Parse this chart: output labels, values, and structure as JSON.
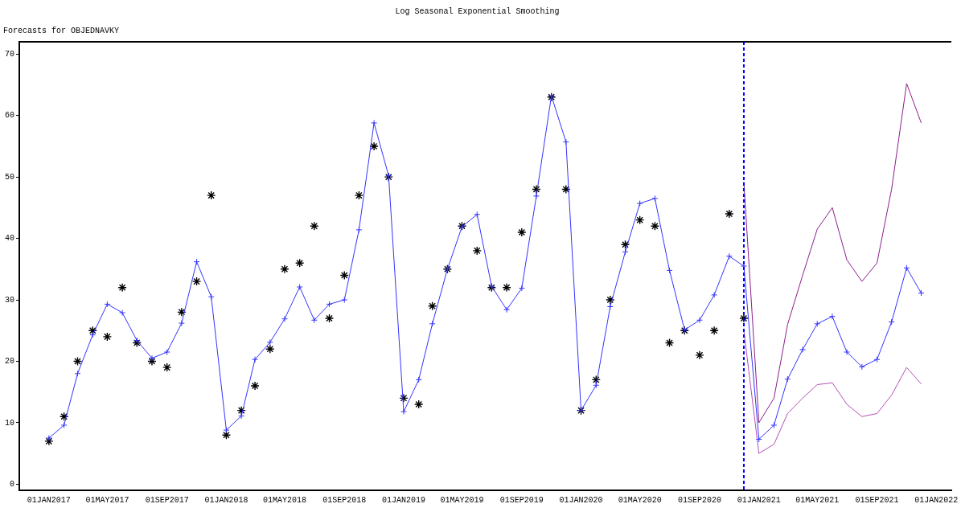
{
  "chart_data": {
    "type": "line",
    "title": "Log Seasonal Exponential Smoothing",
    "subtitle": "Forecasts for OBJEDNAVKY",
    "xlim": [
      "2016-11",
      "2022-02"
    ],
    "xticks": [
      {
        "value": "2017-01",
        "label": "01JAN2017"
      },
      {
        "value": "2017-05",
        "label": "01MAY2017"
      },
      {
        "value": "2017-09",
        "label": "01SEP2017"
      },
      {
        "value": "2018-01",
        "label": "01JAN2018"
      },
      {
        "value": "2018-05",
        "label": "01MAY2018"
      },
      {
        "value": "2018-09",
        "label": "01SEP2018"
      },
      {
        "value": "2019-01",
        "label": "01JAN2019"
      },
      {
        "value": "2019-05",
        "label": "01MAY2019"
      },
      {
        "value": "2019-09",
        "label": "01SEP2019"
      },
      {
        "value": "2020-01",
        "label": "01JAN2020"
      },
      {
        "value": "2020-05",
        "label": "01MAY2020"
      },
      {
        "value": "2020-09",
        "label": "01SEP2020"
      },
      {
        "value": "2021-01",
        "label": "01JAN2021"
      },
      {
        "value": "2021-05",
        "label": "01MAY2021"
      },
      {
        "value": "2021-09",
        "label": "01SEP2021"
      },
      {
        "value": "2022-01",
        "label": "01JAN2022"
      }
    ],
    "ylim": [
      -1,
      72
    ],
    "yticks": [
      0,
      10,
      20,
      30,
      40,
      50,
      60,
      70
    ],
    "grid": false,
    "legend": false,
    "ref_lines": [
      {
        "axis": "x",
        "value": "2020-12",
        "color": "#0000ff",
        "line_style": "dashed"
      }
    ],
    "series": [
      {
        "type": "line",
        "color": "#3333ff",
        "marker": "cross",
        "x": [
          "2017-01",
          "2017-02",
          "2017-03",
          "2017-04",
          "2017-05",
          "2017-06",
          "2017-07",
          "2017-08",
          "2017-09",
          "2017-10",
          "2017-11",
          "2017-12",
          "2018-01",
          "2018-02",
          "2018-03",
          "2018-04",
          "2018-05",
          "2018-06",
          "2018-07",
          "2018-08",
          "2018-09",
          "2018-10",
          "2018-11",
          "2018-12",
          "2019-01",
          "2019-02",
          "2019-03",
          "2019-04",
          "2019-05",
          "2019-06",
          "2019-07",
          "2019-08",
          "2019-09",
          "2019-10",
          "2019-11",
          "2019-12",
          "2020-01",
          "2020-02",
          "2020-03",
          "2020-04",
          "2020-05",
          "2020-06",
          "2020-07",
          "2020-08",
          "2020-09",
          "2020-10",
          "2020-11",
          "2020-12",
          "2021-01",
          "2021-02",
          "2021-03",
          "2021-04",
          "2021-05",
          "2021-06",
          "2021-07",
          "2021-08",
          "2021-09",
          "2021-10",
          "2021-11",
          "2021-12"
        ],
        "values": [
          7.5,
          9.6,
          18,
          24.3,
          29.3,
          27.9,
          23.4,
          20.5,
          21.5,
          26.2,
          36.2,
          30.5,
          8.8,
          11.1,
          20.3,
          23.1,
          26.9,
          32.1,
          26.7,
          29.3,
          30,
          41.4,
          58.8,
          50.2,
          11.8,
          17,
          26.1,
          35,
          41.9,
          43.9,
          32.2,
          28.4,
          31.9,
          46.9,
          63.2,
          55.7,
          12,
          16.1,
          28.9,
          37.8,
          45.7,
          46.5,
          34.8,
          25.1,
          26.7,
          30.8,
          37.1,
          35.5,
          7.3,
          9.6,
          17.1,
          21.9,
          26.1,
          27.3,
          21.5,
          19.1,
          20.3,
          26.4,
          35.2,
          31.1
        ]
      },
      {
        "type": "scatter",
        "color": "#000000",
        "x": [
          "2017-01",
          "2017-02",
          "2017-03",
          "2017-04",
          "2017-05",
          "2017-06",
          "2017-07",
          "2017-08",
          "2017-09",
          "2017-10",
          "2017-11",
          "2017-12",
          "2018-01",
          "2018-02",
          "2018-03",
          "2018-04",
          "2018-05",
          "2018-06",
          "2018-07",
          "2018-08",
          "2018-09",
          "2018-10",
          "2018-11",
          "2018-12",
          "2019-01",
          "2019-02",
          "2019-03",
          "2019-04",
          "2019-05",
          "2019-06",
          "2019-07",
          "2019-08",
          "2019-09",
          "2019-10",
          "2019-11",
          "2019-12",
          "2020-01",
          "2020-02",
          "2020-03",
          "2020-04",
          "2020-05",
          "2020-06",
          "2020-07",
          "2020-08",
          "2020-09",
          "2020-10",
          "2020-11",
          "2020-12"
        ],
        "values": [
          7,
          11,
          20,
          25,
          24,
          32,
          23,
          20,
          19,
          28,
          33,
          47,
          8,
          12,
          16,
          22,
          35,
          36,
          42,
          27,
          34,
          47,
          55,
          50,
          14,
          13,
          29,
          35,
          42,
          38,
          32,
          32,
          41,
          48,
          63,
          48,
          12,
          17,
          30,
          39,
          43,
          42,
          23,
          25,
          21,
          25,
          44,
          27
        ]
      },
      {
        "type": "line",
        "color": "#8b1f8b",
        "marker": "none",
        "x": [
          "2020-12",
          "2021-01",
          "2021-02",
          "2021-03",
          "2021-04",
          "2021-05",
          "2021-06",
          "2021-07",
          "2021-08",
          "2021-09",
          "2021-10",
          "2021-11",
          "2021-12"
        ],
        "values": [
          49.2,
          10,
          14,
          26,
          34,
          41.5,
          45,
          36.5,
          33,
          36,
          48,
          65.2,
          58.8
        ]
      },
      {
        "type": "line",
        "color": "#b34fb3",
        "marker": "none",
        "x": [
          "2020-12",
          "2021-01",
          "2021-02",
          "2021-03",
          "2021-04",
          "2021-05",
          "2021-06",
          "2021-07",
          "2021-08",
          "2021-09",
          "2021-10",
          "2021-11",
          "2021-12"
        ],
        "values": [
          25,
          5,
          6.5,
          11.5,
          14,
          16.2,
          16.5,
          13,
          11,
          11.5,
          14.5,
          19,
          16.3
        ]
      }
    ]
  }
}
